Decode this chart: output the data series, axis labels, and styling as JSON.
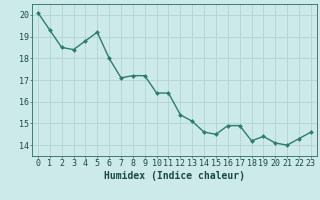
{
  "x": [
    0,
    1,
    2,
    3,
    4,
    5,
    6,
    7,
    8,
    9,
    10,
    11,
    12,
    13,
    14,
    15,
    16,
    17,
    18,
    19,
    20,
    21,
    22,
    23
  ],
  "y": [
    20.1,
    19.3,
    18.5,
    18.4,
    18.8,
    19.2,
    18.0,
    17.1,
    17.2,
    17.2,
    16.4,
    16.4,
    15.4,
    15.1,
    14.6,
    14.5,
    14.9,
    14.9,
    14.2,
    14.4,
    14.1,
    14.0,
    14.3,
    14.6
  ],
  "xlabel": "Humidex (Indice chaleur)",
  "ylim": [
    13.5,
    20.5
  ],
  "xlim": [
    -0.5,
    23.5
  ],
  "yticks": [
    14,
    15,
    16,
    17,
    18,
    19,
    20
  ],
  "xticks": [
    0,
    1,
    2,
    3,
    4,
    5,
    6,
    7,
    8,
    9,
    10,
    11,
    12,
    13,
    14,
    15,
    16,
    17,
    18,
    19,
    20,
    21,
    22,
    23
  ],
  "line_color": "#2d7d6d",
  "marker": "D",
  "marker_size": 2.0,
  "bg_color": "#cdeaea",
  "grid_color": "#aed0cc",
  "tick_color": "#2d6b5e",
  "label_color": "#1a4a40",
  "line_width": 1.0,
  "xlabel_fontsize": 7,
  "tick_fontsize": 6
}
